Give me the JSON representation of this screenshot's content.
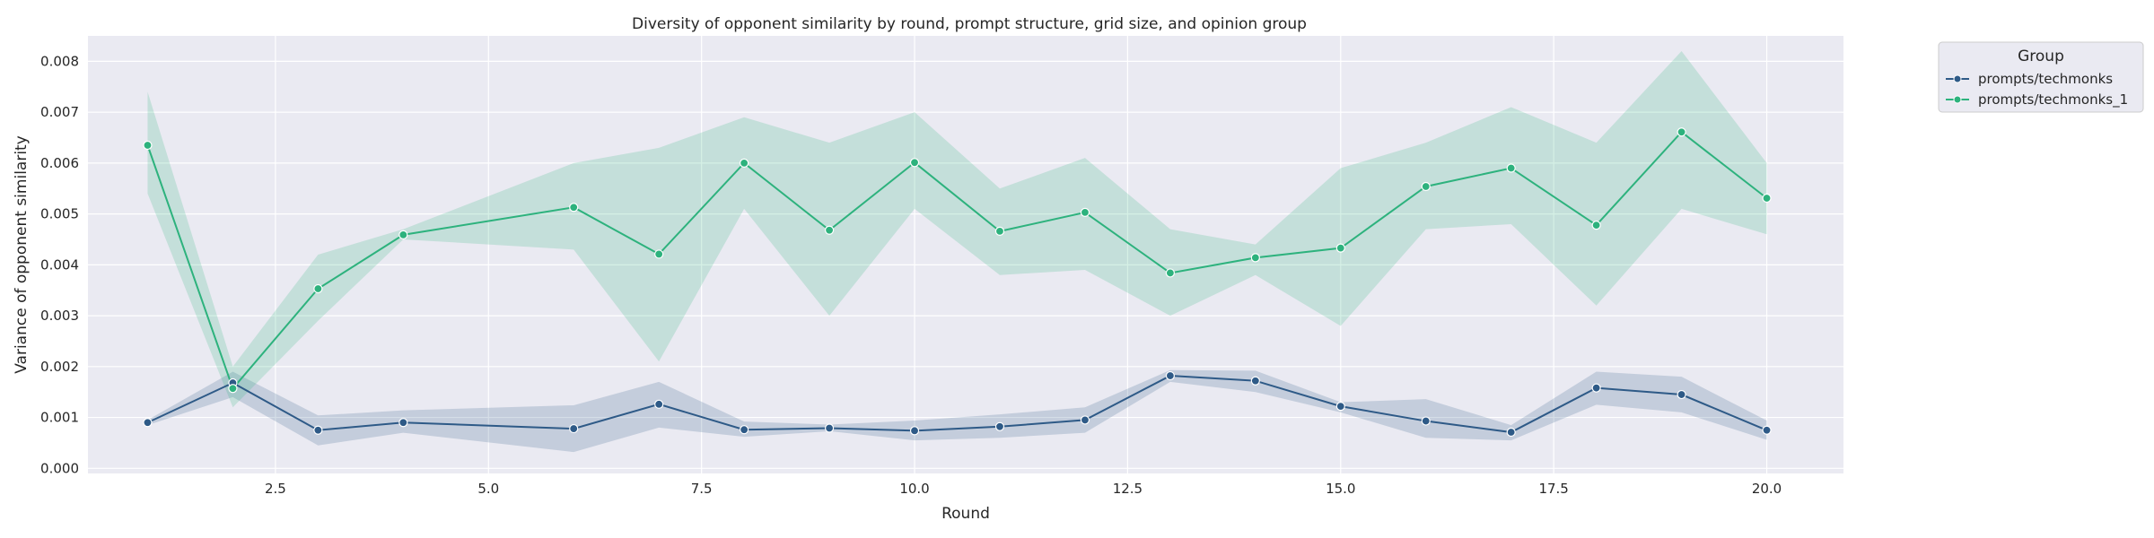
{
  "chart_data": {
    "type": "line",
    "title": "Diversity of opponent similarity by round, prompt structure, grid size, and opinion group",
    "xlabel": "Round",
    "ylabel": "Variance of opponent similarity",
    "xlim": [
      0.3,
      20.9
    ],
    "ylim": [
      -0.0001,
      0.0085
    ],
    "xticks": [
      2.5,
      5.0,
      7.5,
      10.0,
      12.5,
      15.0,
      17.5,
      20.0
    ],
    "xtick_labels": [
      "2.5",
      "5.0",
      "7.5",
      "10.0",
      "12.5",
      "15.0",
      "17.5",
      "20.0"
    ],
    "yticks": [
      0.0,
      0.001,
      0.002,
      0.003,
      0.004,
      0.005,
      0.006,
      0.007,
      0.008
    ],
    "ytick_labels": [
      "0.000",
      "0.001",
      "0.002",
      "0.003",
      "0.004",
      "0.005",
      "0.006",
      "0.007",
      "0.008"
    ],
    "grid": true,
    "legend": {
      "title": "Group",
      "placement": "outside-top-right"
    },
    "series": [
      {
        "name": "prompts/techmonks",
        "color": "#2e5a87",
        "x": [
          1,
          2,
          3,
          4,
          6,
          7,
          8,
          9,
          10,
          11,
          12,
          13,
          14,
          15,
          16,
          17,
          18,
          19,
          20
        ],
        "values": [
          0.0009,
          0.00168,
          0.00075,
          0.0009,
          0.00078,
          0.00126,
          0.00076,
          0.00079,
          0.00074,
          0.00082,
          0.00095,
          0.00182,
          0.00172,
          0.00122,
          0.00093,
          0.00071,
          0.00158,
          0.00145,
          0.00075
        ],
        "lower": [
          0.00085,
          0.0014,
          0.00045,
          0.0007,
          0.00032,
          0.0008,
          0.00062,
          0.00073,
          0.00055,
          0.0006,
          0.0007,
          0.0017,
          0.0015,
          0.0011,
          0.0006,
          0.00055,
          0.00125,
          0.0011,
          0.00056
        ],
        "upper": [
          0.00095,
          0.0019,
          0.00104,
          0.00114,
          0.00124,
          0.0017,
          0.00092,
          0.00086,
          0.00094,
          0.00106,
          0.0012,
          0.00193,
          0.00192,
          0.0013,
          0.00136,
          0.00085,
          0.0019,
          0.0018,
          0.00094
        ]
      },
      {
        "name": "prompts/techmonks_1",
        "color": "#2db27d",
        "x": [
          1,
          2,
          3,
          4,
          6,
          7,
          8,
          9,
          10,
          11,
          12,
          13,
          14,
          15,
          16,
          17,
          18,
          19,
          20
        ],
        "values": [
          0.00635,
          0.00157,
          0.00353,
          0.00459,
          0.00513,
          0.00421,
          0.006,
          0.00468,
          0.00601,
          0.00466,
          0.00503,
          0.00384,
          0.00414,
          0.00433,
          0.00554,
          0.0059,
          0.00478,
          0.00661,
          0.00531
        ],
        "lower": [
          0.0054,
          0.0012,
          0.0029,
          0.0045,
          0.0043,
          0.0021,
          0.0051,
          0.003,
          0.0051,
          0.0038,
          0.0039,
          0.003,
          0.0038,
          0.0028,
          0.0047,
          0.0048,
          0.0032,
          0.0051,
          0.0046
        ],
        "upper": [
          0.0074,
          0.002,
          0.0042,
          0.0047,
          0.006,
          0.0063,
          0.0069,
          0.0064,
          0.007,
          0.0055,
          0.0061,
          0.0047,
          0.0044,
          0.0059,
          0.0064,
          0.0071,
          0.0064,
          0.0082,
          0.006
        ]
      }
    ]
  }
}
